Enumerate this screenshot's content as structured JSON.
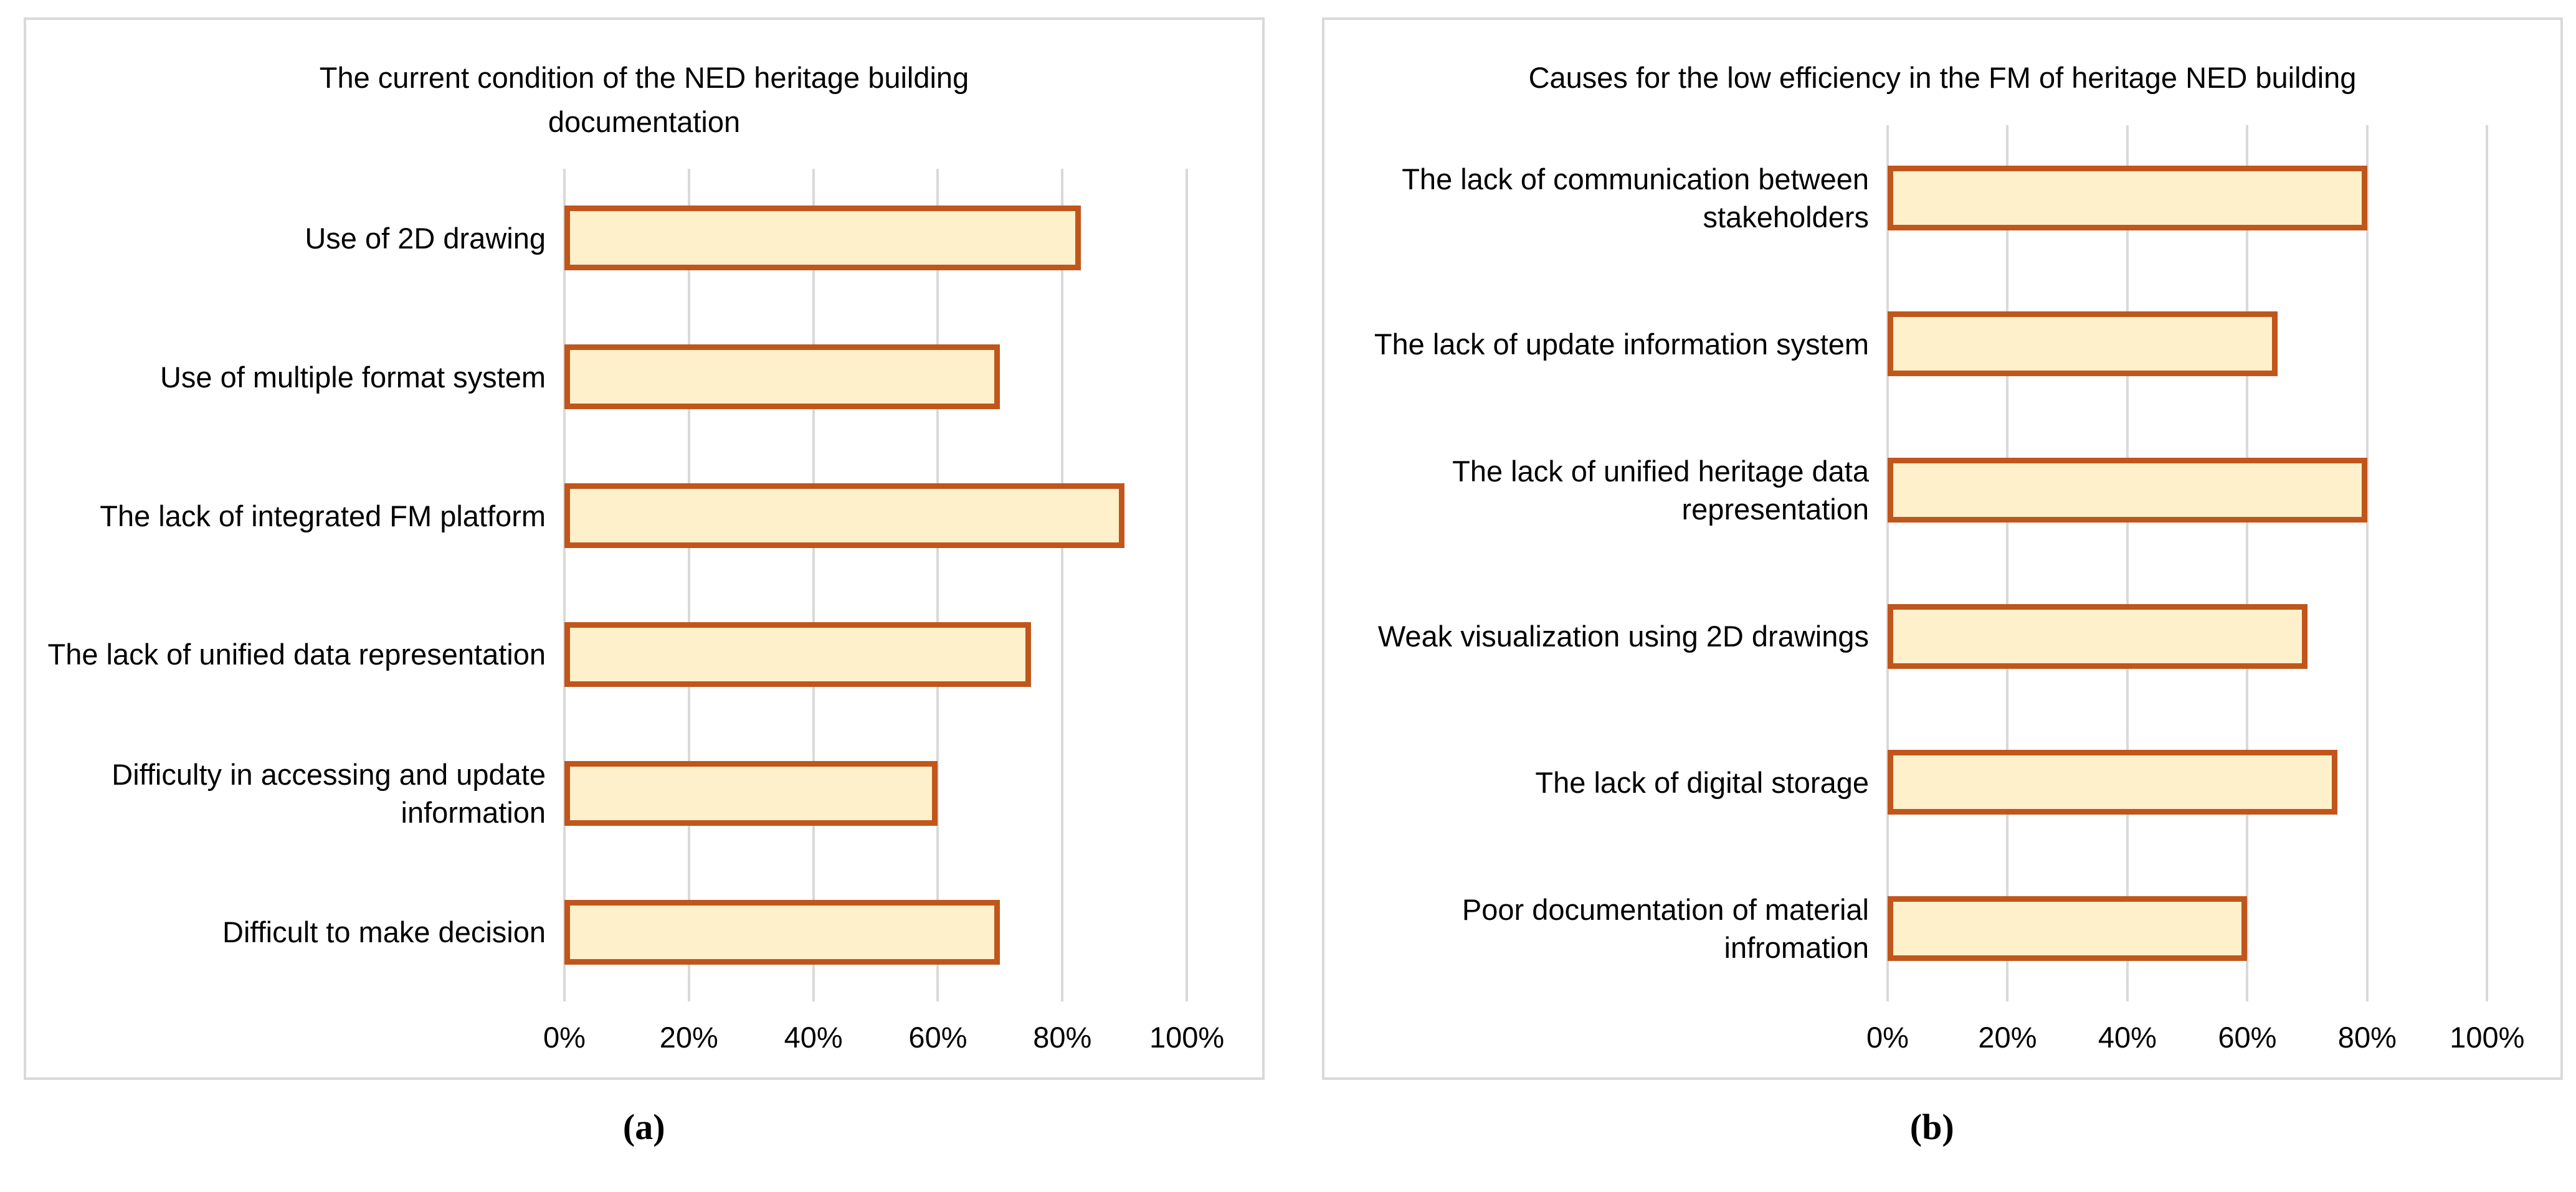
{
  "figure": {
    "colors": {
      "bar_fill": "#fdf0cb",
      "bar_border": "#c0561b",
      "gridline": "#d9d9d9",
      "panel_border": "#d9d9d9",
      "text": "#000000",
      "background": "#ffffff"
    }
  },
  "chart_data": [
    {
      "type": "bar",
      "orientation": "horizontal",
      "title": "The current condition of the NED heritage building  documentation",
      "caption": "(a)",
      "categories": [
        "Use of 2D drawing",
        "Use of multiple format system",
        "The lack of integrated FM platform",
        "The lack of unified data representation",
        "Difficulty in accessing and update information",
        "Difficult to make decision"
      ],
      "values": [
        83,
        70,
        90,
        75,
        60,
        70
      ],
      "unit": "%",
      "xlim": [
        0,
        100
      ],
      "xticks": [
        "0%",
        "20%",
        "40%",
        "60%",
        "80%",
        "100%"
      ],
      "grid": true,
      "legend": "none"
    },
    {
      "type": "bar",
      "orientation": "horizontal",
      "title": "Causes for the low efficiency in the FM of heritage NED building",
      "caption": "(b)",
      "categories": [
        "The lack of communication between stakeholders",
        "The lack of update information system",
        "The lack of unified heritage data representation",
        "Weak visualization using 2D drawings",
        "The lack of digital storage",
        "Poor documentation of material infromation"
      ],
      "values": [
        80,
        65,
        80,
        70,
        75,
        60
      ],
      "unit": "%",
      "xlim": [
        0,
        100
      ],
      "xticks": [
        "0%",
        "20%",
        "40%",
        "60%",
        "80%",
        "100%"
      ],
      "grid": true,
      "legend": "none"
    }
  ]
}
